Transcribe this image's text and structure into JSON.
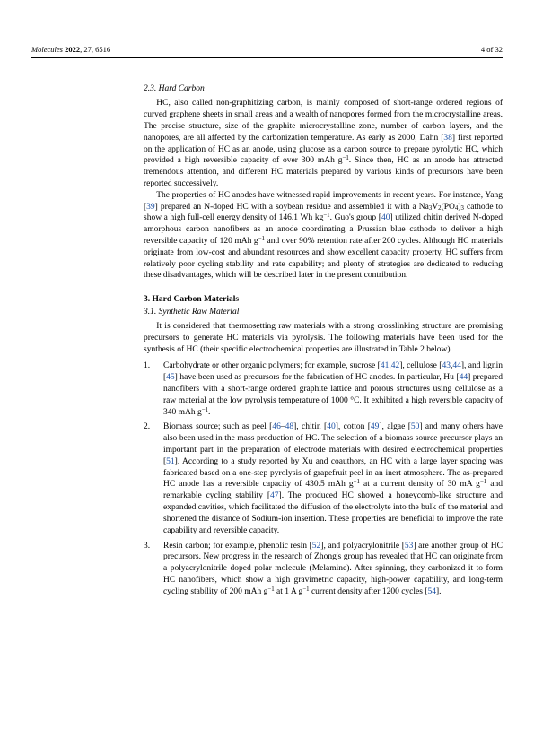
{
  "header": {
    "journal_italic": "Molecules",
    "year_bold": "2022",
    "rest": ", 27, 6516",
    "page": "4 of 32"
  },
  "sec23": {
    "title": "2.3. Hard Carbon",
    "p1a": "HC, also called non-graphitizing carbon, is mainly composed of short-range ordered regions of curved graphene sheets in small areas and a wealth of nanopores formed from the microcrystalline areas. The precise structure, size of the graphite microcrystalline zone, number of carbon layers, and the nanopores, are all affected by the carbonization temperature. As early as 2000, Dahn [",
    "r38": "38",
    "p1b": "] first reported on the application of HC as an anode, using glucose as a carbon source to prepare pyrolytic HC, which provided a high reversible capacity of over 300 mAh g",
    "sup1": "−1",
    "p1c": ". Since then, HC as an anode has attracted tremendous attention, and different HC materials prepared by various kinds of precursors have been reported successively.",
    "p2a": "The properties of HC anodes have witnessed rapid improvements in recent years. For instance, Yang [",
    "r39": "39",
    "p2b": "] prepared an N-doped HC with a soybean residue and assembled it with a Na",
    "sub3": "3",
    "p2c": "V",
    "sub2": "2",
    "p2d": "(PO",
    "sub4": "4",
    "p2e": ")",
    "sub3b": "3",
    "p2f": " cathode to show a high full-cell energy density of 146.1 Wh kg",
    "supm1b": "−1",
    "p2g": ". Guo's group [",
    "r40": "40",
    "p2h": "] utilized chitin derived N-doped amorphous carbon nanofibers as an anode coordinating a Prussian blue cathode to deliver a high reversible capacity of 120 mAh g",
    "supm1c": "−1",
    "p2i": " and over 90% retention rate after 200 cycles. Although HC materials originate from low-cost and abundant resources and show excellent capacity property, HC suffers from relatively poor cycling stability and rate capability; and plenty of strategies are dedicated to reducing these disadvantages, which will be described later in the present contribution."
  },
  "sec3": {
    "title": "3. Hard Carbon Materials",
    "subtitle": "3.1. Synthetic Raw Material",
    "p1": "It is considered that thermosetting raw materials with a strong crosslinking structure are promising precursors to generate HC materials via pyrolysis. The following materials have been used for the synthesis of HC (their specific electrochemical properties are illustrated in Table 2 below)."
  },
  "list": {
    "i1": {
      "num": "1.",
      "a": "Carbohydrate or other organic polymers; for example, sucrose [",
      "r41": "41",
      "c1": ",",
      "r42": "42",
      "b": "], cellulose [",
      "r43": "43",
      "c2": ",",
      "r44": "44",
      "c": "], and lignin [",
      "r45": "45",
      "d": "] have been used as precursors for the fabrication of HC anodes. In particular, Hu [",
      "r44b": "44",
      "e": "] prepared nanofibers with a short-range ordered graphite lattice and porous structures using cellulose as a raw material at the low pyrolysis temperature of 1000 °C. It exhibited a high reversible capacity of 340 mAh g",
      "sup": "−1",
      "f": "."
    },
    "i2": {
      "num": "2.",
      "a": "Biomass source; such as peel [",
      "r46": "46",
      "dash": "–",
      "r48": "48",
      "b": "], chitin [",
      "r40": "40",
      "c": "], cotton [",
      "r49": "49",
      "d": "], algae [",
      "r50": "50",
      "e": "] and many others have also been used in the mass production of HC. The selection of a biomass source precursor plays an important part in the preparation of electrode materials with desired electrochemical properties [",
      "r51": "51",
      "f": "]. According to a study reported by Xu and coauthors, an HC with a large layer spacing was fabricated based on a one-step pyrolysis of grapefruit peel in an inert atmosphere. The as-prepared HC anode has a reversible capacity of 430.5 mAh g",
      "sup1": "−1",
      "g": " at a current density of 30 mA g",
      "sup2": "−1",
      "h": " and remarkable cycling stability [",
      "r47": "47",
      "i": "]. The produced HC showed a honeycomb-like structure and expanded cavities, which facilitated the diffusion of the electrolyte into the bulk of the material and shortened the distance of Sodium-ion insertion. These properties are beneficial to improve the rate capability and reversible capacity."
    },
    "i3": {
      "num": "3.",
      "a": "Resin carbon; for example, phenolic resin [",
      "r52": "52",
      "b": "], and polyacrylonitrile [",
      "r53": "53",
      "c": "] are another group of HC precursors. New progress in the research of Zhong's group has revealed that HC can originate from a polyacrylonitrile doped polar molecule (Melamine). After spinning, they carbonized it to form HC nanofibers, which show a high gravimetric capacity, high-power capability, and long-term cycling stability of 200 mAh g",
      "sup1": "−1",
      "d": " at 1 A g",
      "sup2": "−1",
      "e": " current density after 1200 cycles [",
      "r54": "54",
      "f": "]."
    }
  }
}
